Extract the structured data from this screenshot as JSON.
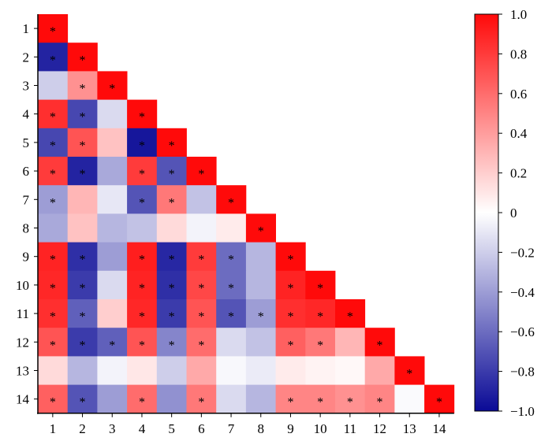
{
  "chart_data": {
    "type": "heatmap",
    "title": "",
    "xlabel": "",
    "ylabel": "",
    "labels": [
      "1",
      "2",
      "3",
      "4",
      "5",
      "6",
      "7",
      "8",
      "9",
      "10",
      "11",
      "12",
      "13",
      "14"
    ],
    "matrix": [
      [
        1.0
      ],
      [
        -0.9,
        1.0
      ],
      [
        -0.2,
        0.45,
        1.0
      ],
      [
        0.85,
        -0.75,
        -0.15,
        1.0
      ],
      [
        -0.75,
        0.7,
        0.25,
        -0.95,
        1.0
      ],
      [
        0.8,
        -0.9,
        -0.35,
        0.8,
        -0.7,
        1.0
      ],
      [
        -0.4,
        0.3,
        -0.1,
        -0.7,
        0.55,
        -0.25,
        1.0
      ],
      [
        -0.35,
        0.25,
        -0.3,
        -0.25,
        0.15,
        -0.05,
        0.08,
        1.0
      ],
      [
        0.9,
        -0.85,
        -0.4,
        0.92,
        -0.88,
        0.8,
        -0.6,
        -0.3,
        1.0
      ],
      [
        0.88,
        -0.8,
        -0.15,
        0.9,
        -0.85,
        0.75,
        -0.6,
        -0.3,
        0.9,
        1.0
      ],
      [
        0.85,
        -0.65,
        0.2,
        0.88,
        -0.8,
        0.7,
        -0.7,
        -0.4,
        0.85,
        0.88,
        1.0
      ],
      [
        0.7,
        -0.8,
        -0.65,
        0.7,
        -0.5,
        0.6,
        -0.15,
        -0.25,
        0.65,
        0.55,
        0.3,
        1.0
      ],
      [
        0.15,
        -0.3,
        -0.05,
        0.1,
        -0.2,
        0.35,
        -0.03,
        -0.08,
        0.08,
        0.05,
        0.03,
        0.35,
        1.0
      ],
      [
        0.65,
        -0.7,
        -0.4,
        0.6,
        -0.45,
        0.55,
        -0.15,
        -0.3,
        0.5,
        0.5,
        0.45,
        0.5,
        -0.02,
        1.0
      ]
    ],
    "significant": [
      [
        1
      ],
      [
        1,
        1
      ],
      [
        0,
        1,
        1
      ],
      [
        1,
        1,
        0,
        1
      ],
      [
        1,
        1,
        0,
        1,
        1
      ],
      [
        1,
        1,
        0,
        1,
        1,
        1
      ],
      [
        1,
        0,
        0,
        1,
        1,
        0,
        1
      ],
      [
        0,
        0,
        0,
        0,
        0,
        0,
        0,
        1
      ],
      [
        1,
        1,
        0,
        1,
        1,
        1,
        1,
        0,
        1
      ],
      [
        1,
        1,
        0,
        1,
        1,
        1,
        1,
        0,
        1,
        1
      ],
      [
        1,
        1,
        0,
        1,
        1,
        1,
        1,
        1,
        1,
        1,
        1
      ],
      [
        1,
        1,
        1,
        1,
        1,
        1,
        0,
        0,
        1,
        1,
        0,
        1
      ],
      [
        0,
        0,
        0,
        0,
        0,
        0,
        0,
        0,
        0,
        0,
        0,
        0,
        1
      ],
      [
        1,
        1,
        0,
        1,
        0,
        1,
        0,
        0,
        1,
        1,
        1,
        1,
        0,
        1
      ]
    ],
    "significance_marker": "*",
    "colorbar": {
      "ticks": [
        1.0,
        0.8,
        0.6,
        0.4,
        0.2,
        0,
        -0.2,
        -0.4,
        -0.6,
        -0.8,
        -1.0
      ],
      "tick_labels": [
        "1.0",
        "0.8",
        "0.6",
        "0.4",
        "0.2",
        "0",
        "−0.2",
        "−0.4",
        "−0.6",
        "−0.8",
        "−1.0"
      ],
      "range": [
        -1.0,
        1.0
      ],
      "colors": {
        "neg": "#0a0a96",
        "mid": "#ffffff",
        "pos": "#ff0a0a"
      }
    },
    "grid": false,
    "legend_position": "right"
  }
}
